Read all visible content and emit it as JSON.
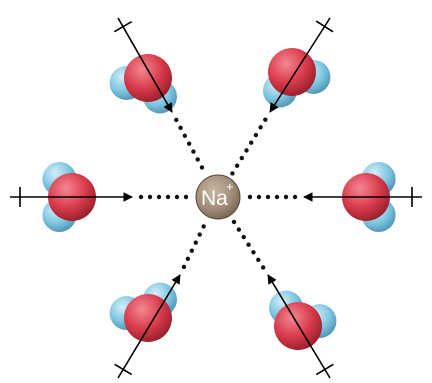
{
  "ion": {
    "symbol": "Na",
    "charge": "+",
    "color": "#9e8a75"
  },
  "colors": {
    "oxygen": "#d83a4a",
    "hydrogen": "#7fc7e2",
    "arrow": "#000000",
    "dots": "#111111"
  },
  "water_molecules": [
    {
      "id": "top-left"
    },
    {
      "id": "top-right"
    },
    {
      "id": "left"
    },
    {
      "id": "right"
    },
    {
      "id": "bottom-left"
    },
    {
      "id": "bottom-right"
    }
  ]
}
